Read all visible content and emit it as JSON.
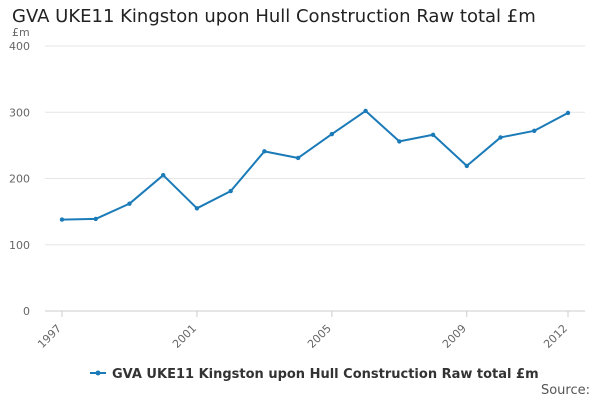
{
  "chart_data": {
    "type": "line",
    "title": "GVA UKE11 Kingston upon Hull Construction Raw total £m",
    "ylabel": "£m",
    "xlabel": "",
    "x": [
      1997,
      1998,
      1999,
      2000,
      2001,
      2002,
      2003,
      2004,
      2005,
      2006,
      2007,
      2008,
      2009,
      2010,
      2011,
      2012
    ],
    "x_tick_labels": [
      "1997",
      "2001",
      "2005",
      "2009",
      "2012"
    ],
    "y_tick_labels": [
      "0",
      "100",
      "200",
      "300",
      "400"
    ],
    "ylim": [
      0,
      400
    ],
    "grid": "horizontal",
    "legend_position": "bottom-center",
    "series": [
      {
        "name": "GVA UKE11 Kingston upon Hull Construction Raw total £m",
        "color": "#1b7bb8",
        "values": [
          138,
          139,
          162,
          205,
          155,
          181,
          241,
          231,
          267,
          302,
          256,
          266,
          219,
          262,
          272,
          299
        ]
      }
    ]
  },
  "source_label": "Source:"
}
